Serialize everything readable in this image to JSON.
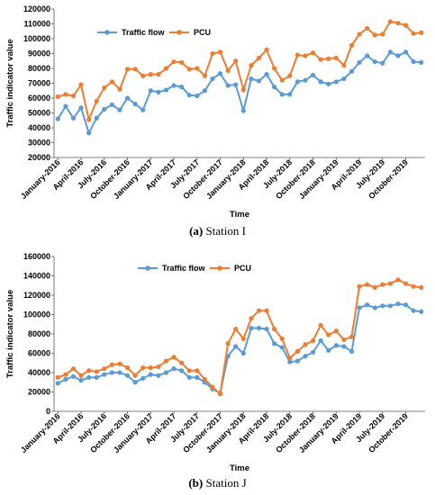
{
  "chart_data": [
    {
      "type": "line",
      "caption_letter": "(a)",
      "caption_text": "Station I",
      "xlabel": "Time",
      "ylabel": "Traffic indicator value",
      "ylim": [
        20000,
        120000
      ],
      "yticks": [
        20000,
        30000,
        40000,
        50000,
        60000,
        70000,
        80000,
        90000,
        100000,
        110000,
        120000
      ],
      "grid": false,
      "legend_position": "top-left",
      "x": [
        "January-2016",
        "February-2016",
        "March-2016",
        "April-2016",
        "May-2016",
        "June-2016",
        "July-2016",
        "August-2016",
        "September-2016",
        "October-2016",
        "November-2016",
        "December-2016",
        "January-2017",
        "February-2017",
        "March-2017",
        "April-2017",
        "May-2017",
        "June-2017",
        "July-2017",
        "August-2017",
        "September-2017",
        "October-2017",
        "November-2017",
        "December-2017",
        "January-2018",
        "February-2018",
        "March-2018",
        "April-2018",
        "May-2018",
        "June-2018",
        "July-2018",
        "August-2018",
        "September-2018",
        "October-2018",
        "November-2018",
        "December-2018",
        "January-2019",
        "February-2019",
        "March-2019",
        "April-2019",
        "May-2019",
        "June-2019",
        "July-2019",
        "August-2019",
        "September-2019",
        "October-2019",
        "November-2019",
        "December-2019"
      ],
      "xtick_labels": [
        "January-2016",
        "April-2016",
        "July-2016",
        "October-2016",
        "January-2017",
        "April-2017",
        "July-2017",
        "October-2017",
        "January-2018",
        "April-2018",
        "July-2018",
        "October-2018",
        "January-2019",
        "April-2019",
        "July-2019",
        "October-2019"
      ],
      "series": [
        {
          "name": "Traffic flow",
          "color": "#5B9BD5",
          "values": [
            46000,
            54500,
            46500,
            53500,
            36500,
            46500,
            52500,
            55500,
            52000,
            60000,
            56000,
            52000,
            65000,
            64000,
            65500,
            68500,
            67500,
            62000,
            61500,
            65000,
            73000,
            76500,
            68500,
            69000,
            51500,
            73000,
            71500,
            76000,
            67500,
            62500,
            62500,
            71000,
            72000,
            75500,
            71000,
            69500,
            71000,
            73000,
            78000,
            84000,
            88500,
            84500,
            83500,
            91000,
            88500,
            91000,
            84500,
            84000
          ]
        },
        {
          "name": "PCU",
          "color": "#ED7D31",
          "values": [
            61000,
            62500,
            61500,
            69000,
            45500,
            58000,
            67000,
            71000,
            66000,
            79500,
            79500,
            75000,
            76000,
            76000,
            80000,
            84500,
            84000,
            79500,
            80000,
            75000,
            90000,
            91000,
            78500,
            85000,
            65500,
            82000,
            87000,
            92500,
            80000,
            72000,
            75000,
            89000,
            88500,
            90500,
            86000,
            86500,
            87000,
            82000,
            95500,
            103000,
            107000,
            102500,
            103000,
            111500,
            110500,
            109000,
            103500,
            104000
          ]
        }
      ]
    },
    {
      "type": "line",
      "caption_letter": "(b)",
      "caption_text": "Station J",
      "xlabel": "Time",
      "ylabel": "Traffic indicator value",
      "ylim": [
        0,
        160000
      ],
      "yticks": [
        0,
        20000,
        40000,
        60000,
        80000,
        100000,
        120000,
        140000,
        160000
      ],
      "grid": false,
      "legend_position": "top-center",
      "x": [
        "January-2016",
        "February-2016",
        "March-2016",
        "April-2016",
        "May-2016",
        "June-2016",
        "July-2016",
        "August-2016",
        "September-2016",
        "October-2016",
        "November-2016",
        "December-2016",
        "January-2017",
        "February-2017",
        "March-2017",
        "April-2017",
        "May-2017",
        "June-2017",
        "July-2017",
        "August-2017",
        "September-2017",
        "October-2017",
        "November-2017",
        "December-2017",
        "January-2018",
        "February-2018",
        "March-2018",
        "April-2018",
        "May-2018",
        "June-2018",
        "July-2018",
        "August-2018",
        "September-2018",
        "October-2018",
        "November-2018",
        "December-2018",
        "January-2019",
        "February-2019",
        "March-2019",
        "April-2019",
        "May-2019",
        "June-2019",
        "July-2019",
        "August-2019",
        "September-2019",
        "October-2019",
        "November-2019",
        "December-2019"
      ],
      "xtick_labels": [
        "January-2016",
        "April-2016",
        "July-2016",
        "October-2016",
        "January-2017",
        "April-2017",
        "July-2017",
        "October-2017",
        "January-2018",
        "April-2018",
        "July-2018",
        "October-2018",
        "January-2019",
        "April-2019",
        "July-2019",
        "October-2019"
      ],
      "series": [
        {
          "name": "Traffic flow",
          "color": "#5B9BD5",
          "values": [
            29000,
            33000,
            36000,
            32000,
            35000,
            35000,
            38000,
            40000,
            40000,
            37000,
            30000,
            34000,
            38000,
            37000,
            40000,
            44000,
            42000,
            35000,
            35000,
            30000,
            23000,
            19000,
            57000,
            67000,
            60000,
            86000,
            86000,
            85000,
            70000,
            66000,
            51000,
            52000,
            57000,
            61000,
            73000,
            63000,
            68000,
            67000,
            62000,
            107000,
            110000,
            107000,
            109000,
            109000,
            111000,
            110000,
            104000,
            103000
          ]
        },
        {
          "name": "PCU",
          "color": "#ED7D31",
          "values": [
            35000,
            38000,
            44000,
            37000,
            42000,
            41000,
            44000,
            48000,
            49000,
            45000,
            37000,
            45000,
            45000,
            46000,
            52000,
            56000,
            50000,
            42000,
            42000,
            33000,
            25000,
            18000,
            70000,
            85000,
            75000,
            96000,
            104000,
            104000,
            85000,
            75000,
            55000,
            62000,
            69000,
            73000,
            89000,
            79000,
            83000,
            74000,
            77000,
            129000,
            131000,
            128000,
            131000,
            132000,
            136000,
            132000,
            129000,
            128000
          ]
        }
      ]
    }
  ]
}
